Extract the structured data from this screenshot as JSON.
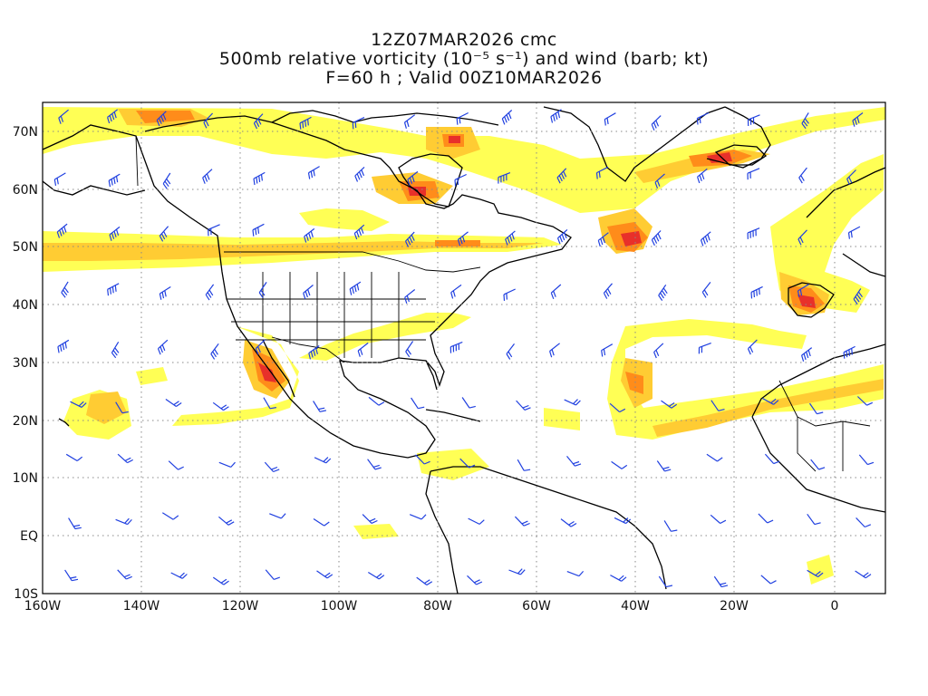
{
  "title": {
    "line1": "12Z07MAR2026 cmc",
    "line2": "500mb relative vorticity (10⁻⁵ s⁻¹) and wind (barb; kt)",
    "line3": "F=60 h ; Valid 00Z10MAR2026"
  },
  "lat_labels": [
    "70N",
    "60N",
    "50N",
    "40N",
    "30N",
    "20N",
    "10N",
    "EQ",
    "10S"
  ],
  "lon_labels": [
    "160W",
    "140W",
    "120W",
    "100W",
    "80W",
    "60W",
    "40W",
    "20W",
    "0"
  ],
  "colors": {
    "vort_low": "#ffff55",
    "vort_mid": "#ffcc33",
    "vort_high": "#ff8c1a",
    "vort_max": "#e8302a",
    "barb": "#2040e0",
    "coast": "#000000",
    "grid": "#888888"
  }
}
